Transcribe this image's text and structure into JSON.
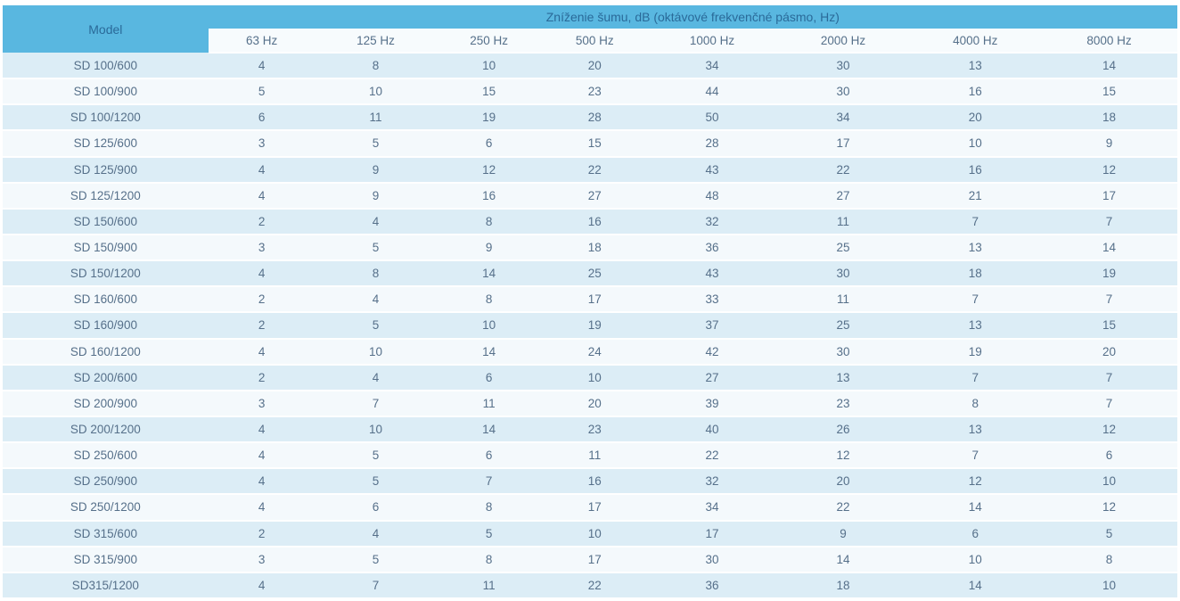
{
  "chart_data": {
    "type": "table",
    "title": "Zníženie šumu, dB (oktávové frekvenčné pásmo, Hz)",
    "model_column_header": "Model",
    "columns": [
      "63 Hz",
      "125 Hz",
      "250 Hz",
      "500 Hz",
      "1000 Hz",
      "2000 Hz",
      "4000 Hz",
      "8000 Hz"
    ],
    "rows": [
      {
        "model": "SD 100/600",
        "values": [
          4,
          8,
          10,
          20,
          34,
          30,
          13,
          14
        ]
      },
      {
        "model": "SD 100/900",
        "values": [
          5,
          10,
          15,
          23,
          44,
          30,
          16,
          15
        ]
      },
      {
        "model": "SD 100/1200",
        "values": [
          6,
          11,
          19,
          28,
          50,
          34,
          20,
          18
        ]
      },
      {
        "model": "SD 125/600",
        "values": [
          3,
          5,
          6,
          15,
          28,
          17,
          10,
          9
        ]
      },
      {
        "model": "SD 125/900",
        "values": [
          4,
          9,
          12,
          22,
          43,
          22,
          16,
          12
        ]
      },
      {
        "model": "SD 125/1200",
        "values": [
          4,
          9,
          16,
          27,
          48,
          27,
          21,
          17
        ]
      },
      {
        "model": "SD 150/600",
        "values": [
          2,
          4,
          8,
          16,
          32,
          11,
          7,
          7
        ]
      },
      {
        "model": "SD 150/900",
        "values": [
          3,
          5,
          9,
          18,
          36,
          25,
          13,
          14
        ]
      },
      {
        "model": "SD 150/1200",
        "values": [
          4,
          8,
          14,
          25,
          43,
          30,
          18,
          19
        ]
      },
      {
        "model": "SD 160/600",
        "values": [
          2,
          4,
          8,
          17,
          33,
          11,
          7,
          7
        ]
      },
      {
        "model": "SD 160/900",
        "values": [
          2,
          5,
          10,
          19,
          37,
          25,
          13,
          15
        ]
      },
      {
        "model": "SD 160/1200",
        "values": [
          4,
          10,
          14,
          24,
          42,
          30,
          19,
          20
        ]
      },
      {
        "model": "SD 200/600",
        "values": [
          2,
          4,
          6,
          10,
          27,
          13,
          7,
          7
        ]
      },
      {
        "model": "SD 200/900",
        "values": [
          3,
          7,
          11,
          20,
          39,
          23,
          8,
          7
        ]
      },
      {
        "model": "SD 200/1200",
        "values": [
          4,
          10,
          14,
          23,
          40,
          26,
          13,
          12
        ]
      },
      {
        "model": "SD 250/600",
        "values": [
          4,
          5,
          6,
          11,
          22,
          12,
          7,
          6
        ]
      },
      {
        "model": "SD 250/900",
        "values": [
          4,
          5,
          7,
          16,
          32,
          20,
          12,
          10
        ]
      },
      {
        "model": "SD 250/1200",
        "values": [
          4,
          6,
          8,
          17,
          34,
          22,
          14,
          12
        ]
      },
      {
        "model": "SD 315/600",
        "values": [
          2,
          4,
          5,
          10,
          17,
          9,
          6,
          5
        ]
      },
      {
        "model": "SD 315/900",
        "values": [
          3,
          5,
          8,
          17,
          30,
          14,
          10,
          8
        ]
      },
      {
        "model": "SD315/1200",
        "values": [
          4,
          7,
          11,
          22,
          36,
          18,
          14,
          10
        ]
      }
    ],
    "layout": {
      "legend": "none",
      "grid": "row-stripes"
    }
  },
  "colors": {
    "header_bg": "#59b7e0",
    "header_text": "#2a6a99",
    "row_odd_bg": "#dcedf6",
    "row_even_bg": "#f4f9fc",
    "subheader_bg": "#f7fbfd",
    "body_text": "#56708a"
  }
}
